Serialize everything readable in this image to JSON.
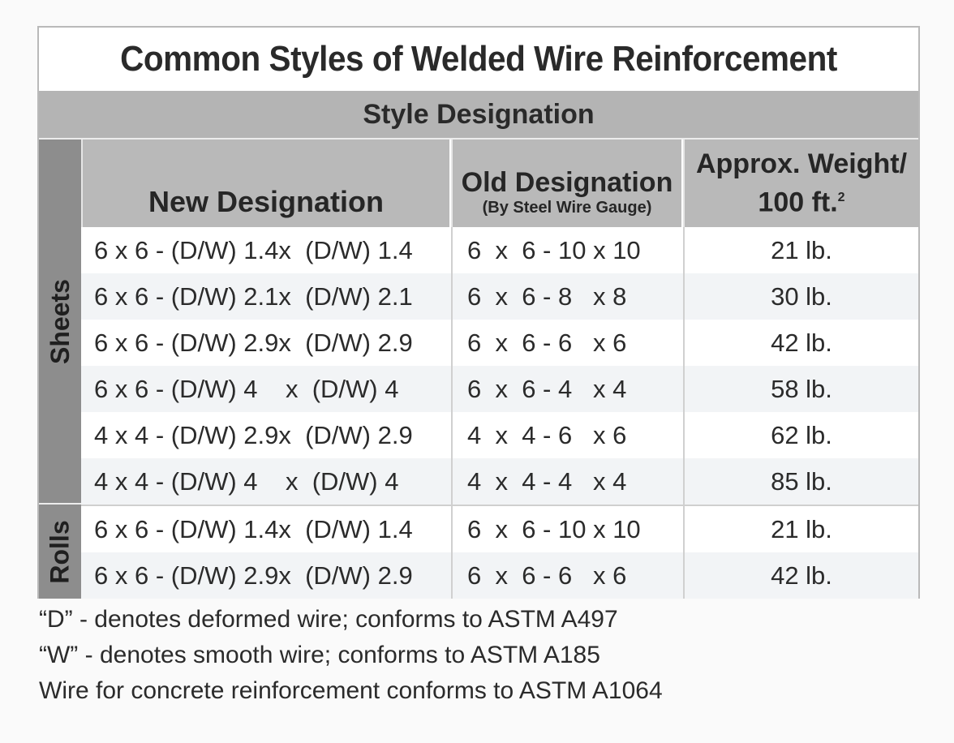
{
  "title": "Common Styles of Welded Wire Reinforcement",
  "style_header": "Style Designation",
  "columns": {
    "new": "New Designation",
    "old_main": "Old Designation",
    "old_sub": "(By Steel Wire Gauge)",
    "weight_line1": "Approx. Weight/",
    "weight_line2": "100 ft.",
    "weight_sup": "2"
  },
  "groups": {
    "sheets_label": "Sheets",
    "rolls_label": "Rolls"
  },
  "sheets": [
    {
      "new": "6 x 6 - (D/W) 1.4x  (D/W) 1.4",
      "old": "6  x  6 - 10 x 10",
      "weight": "21 lb."
    },
    {
      "new": "6 x 6 - (D/W) 2.1x  (D/W) 2.1",
      "old": "6  x  6 - 8   x 8",
      "weight": "30 lb."
    },
    {
      "new": "6 x 6 - (D/W) 2.9x  (D/W) 2.9",
      "old": "6  x  6 - 6   x 6",
      "weight": "42 lb."
    },
    {
      "new": "6 x 6 - (D/W) 4    x  (D/W) 4",
      "old": "6  x  6 - 4   x 4",
      "weight": "58 lb."
    },
    {
      "new": "4 x 4 - (D/W) 2.9x  (D/W) 2.9",
      "old": "4  x  4 - 6   x 6",
      "weight": "62 lb."
    },
    {
      "new": "4 x 4 - (D/W) 4    x  (D/W) 4",
      "old": "4  x  4 - 4   x 4",
      "weight": "85 lb."
    }
  ],
  "rolls": [
    {
      "new": "6 x 6 - (D/W) 1.4x  (D/W) 1.4",
      "old": "6  x  6 - 10 x 10",
      "weight": "21 lb."
    },
    {
      "new": "6 x 6 - (D/W) 2.9x  (D/W) 2.9",
      "old": "6  x  6 - 6   x 6",
      "weight": "42 lb."
    }
  ],
  "notes": [
    "“D” - denotes deformed wire; conforms to ASTM A497",
    "“W” - denotes smooth wire; conforms to ASTM A185",
    "Wire for concrete reinforcement conforms to ASTM A1064"
  ]
}
